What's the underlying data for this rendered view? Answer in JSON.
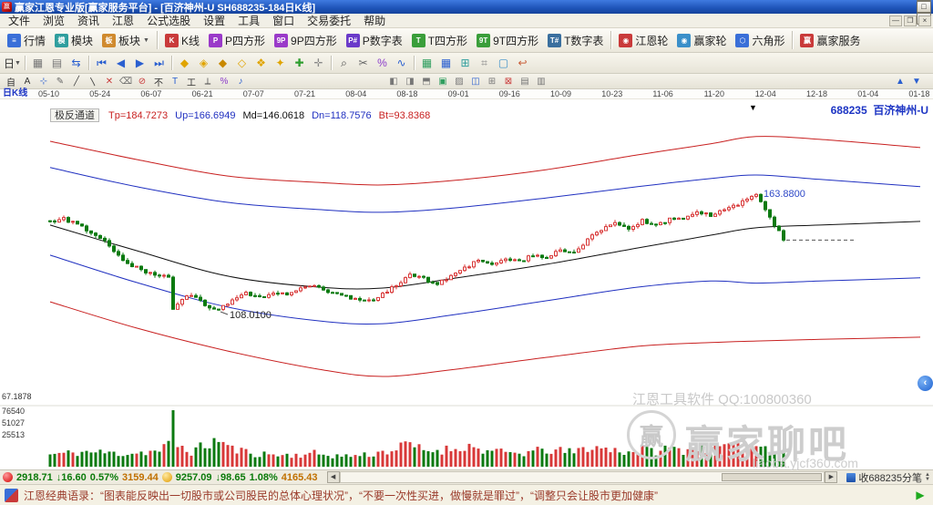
{
  "window": {
    "title": "赢家江恩专业版[赢家服务平台] - [百济神州-U SH688235-184日K线]",
    "controls": [
      {
        "glyph": "—",
        "name": "minimize-button"
      },
      {
        "glyph": "□",
        "name": "maximize-button"
      },
      {
        "glyph": "×",
        "name": "close-button"
      }
    ]
  },
  "menubar": {
    "items": [
      "文件",
      "浏览",
      "资讯",
      "江恩",
      "公式选股",
      "设置",
      "工具",
      "窗口",
      "交易委托",
      "帮助"
    ],
    "mdi_controls": [
      {
        "glyph": "—",
        "name": "mdi-minimize-button"
      },
      {
        "glyph": "❐",
        "name": "mdi-restore-button"
      },
      {
        "glyph": "×",
        "name": "mdi-close-button"
      }
    ]
  },
  "toolbar_main": {
    "items": [
      {
        "label": "行情",
        "ic": "≡",
        "bg": "#3a6fd8",
        "name": "quotes-button"
      },
      {
        "label": "模块",
        "ic": "模",
        "bg": "#2f9e9e",
        "name": "modules-button"
      },
      {
        "label": "板块",
        "ic": "板",
        "bg": "#d08a2e",
        "caret": true,
        "name": "sectors-button"
      },
      {
        "sep": true
      },
      {
        "label": "K线",
        "ic": "K",
        "bg": "#c93a3a",
        "name": "kline-button"
      },
      {
        "label": "P四方形",
        "ic": "P",
        "bg": "#9a3ac9",
        "name": "p-square-button"
      },
      {
        "label": "9P四方形",
        "ic": "9P",
        "bg": "#9a3ac9",
        "name": "nine-p-square-button"
      },
      {
        "label": "P数字表",
        "ic": "P#",
        "bg": "#6a3ac9",
        "name": "p-number-table-button"
      },
      {
        "label": "T四方形",
        "ic": "T",
        "bg": "#3a9e3a",
        "name": "t-square-button"
      },
      {
        "label": "9T四方形",
        "ic": "9T",
        "bg": "#3a9e3a",
        "name": "nine-t-square-button"
      },
      {
        "label": "T数字表",
        "ic": "T#",
        "bg": "#3a6f9e",
        "name": "t-number-table-button"
      },
      {
        "sep": true
      },
      {
        "label": "江恩轮",
        "ic": "◉",
        "bg": "#c93a3a",
        "name": "gann-wheel-button"
      },
      {
        "label": "赢家轮",
        "ic": "◉",
        "bg": "#3a8fc9",
        "name": "winner-wheel-button"
      },
      {
        "label": "六角形",
        "ic": "⬡",
        "bg": "#3a6fd8",
        "name": "hexagon-button"
      },
      {
        "sep": true
      },
      {
        "label": "赢家服务",
        "ic": "赢",
        "bg": "#c93a3a",
        "name": "winner-service-button"
      }
    ]
  },
  "toolbar_tools": {
    "items": [
      {
        "g": "日",
        "c": "#333333",
        "caret": true,
        "name": "period-selector-button"
      },
      {
        "sep": true
      },
      {
        "g": "▦",
        "c": "#777777",
        "name": "chart-grid-icon"
      },
      {
        "g": "▤",
        "c": "#777777",
        "name": "chart-layout-icon"
      },
      {
        "g": "⇆",
        "c": "#2a5fd0",
        "name": "swap-icon"
      },
      {
        "sep": true
      },
      {
        "g": "⏮",
        "c": "#2a5fd0",
        "name": "first-page-icon"
      },
      {
        "g": "◀",
        "c": "#2a5fd0",
        "name": "prev-page-icon"
      },
      {
        "g": "▶",
        "c": "#2a5fd0",
        "name": "next-page-icon"
      },
      {
        "g": "⏭",
        "c": "#2a5fd0",
        "name": "last-page-icon"
      },
      {
        "sep": true
      },
      {
        "g": "◆",
        "c": "#e0a400",
        "name": "diamond-icon"
      },
      {
        "g": "◈",
        "c": "#e0a400",
        "name": "diamond-target-icon"
      },
      {
        "g": "◆",
        "c": "#c88800",
        "name": "diamond-dark-icon"
      },
      {
        "g": "◇",
        "c": "#e0a400",
        "name": "diamond-outline-icon"
      },
      {
        "g": "❖",
        "c": "#e0a400",
        "name": "diamond-cluster-icon"
      },
      {
        "g": "✦",
        "c": "#e0a400",
        "name": "star-icon"
      },
      {
        "g": "✚",
        "c": "#2f9e2f",
        "name": "plus-cross-icon"
      },
      {
        "g": "✛",
        "c": "#888888",
        "name": "crosshair-icon"
      },
      {
        "sep": true
      },
      {
        "g": "⌕",
        "c": "#444444",
        "name": "zoom-icon"
      },
      {
        "g": "✂",
        "c": "#666666",
        "name": "scissors-icon"
      },
      {
        "g": "%",
        "c": "#8a3ac9",
        "name": "percent-icon"
      },
      {
        "g": "∿",
        "c": "#2a5fd0",
        "name": "wave-icon"
      },
      {
        "sep": true
      },
      {
        "g": "▦",
        "c": "#2f9e5f",
        "name": "green-grid-icon"
      },
      {
        "g": "▦",
        "c": "#2a5fd0",
        "name": "blue-grid-icon"
      },
      {
        "g": "⊞",
        "c": "#2f9e9e",
        "name": "calendar-icon"
      },
      {
        "g": "⌗",
        "c": "#888888",
        "name": "hash-grid-icon"
      },
      {
        "g": "▢",
        "c": "#3a8fc9",
        "name": "frame-icon"
      },
      {
        "g": "↩",
        "c": "#c95f3a",
        "name": "undo-icon"
      }
    ]
  },
  "toolbar_draw": {
    "left_items": [
      {
        "g": "自",
        "c": "#333333",
        "name": "auto-tool-icon"
      },
      {
        "g": "A",
        "c": "#333333",
        "name": "text-tool-icon"
      },
      {
        "g": "⊹",
        "c": "#2a5fd0",
        "name": "point-tool-icon"
      },
      {
        "g": "✎",
        "c": "#666666",
        "name": "pencil-tool-icon"
      },
      {
        "g": "╱",
        "c": "#444444",
        "name": "line-tool-icon"
      },
      {
        "g": "〵",
        "c": "#444444",
        "name": "polyline-tool-icon"
      },
      {
        "g": "✕",
        "c": "#c93a3a",
        "name": "delete-tool-icon"
      },
      {
        "g": "⌫",
        "c": "#666666",
        "name": "eraser-tool-icon"
      },
      {
        "g": "⊘",
        "c": "#c93a3a",
        "name": "forbid-tool-icon"
      },
      {
        "g": "不",
        "c": "#333333",
        "name": "no-tool-icon"
      },
      {
        "g": "T",
        "c": "#2a5fd0",
        "name": "t0-tool-icon"
      },
      {
        "g": "工",
        "c": "#333333",
        "name": "beam-tool-icon"
      },
      {
        "g": "⟂",
        "c": "#444444",
        "name": "perpendicular-tool-icon"
      },
      {
        "g": "%",
        "c": "#8a3ac9",
        "name": "retrace-percent-icon"
      },
      {
        "g": "♪",
        "c": "#2a5fd0",
        "name": "alert-tool-icon"
      }
    ],
    "mid_items": [
      {
        "g": "◧",
        "c": "#777777",
        "name": "layout-left-icon"
      },
      {
        "g": "◨",
        "c": "#777777",
        "name": "layout-right-icon"
      },
      {
        "g": "⬒",
        "c": "#777777",
        "name": "layout-top-icon"
      },
      {
        "g": "▣",
        "c": "#2f9e5f",
        "name": "layout-full-icon"
      },
      {
        "g": "▨",
        "c": "#777777",
        "name": "layout-hatch-icon"
      },
      {
        "g": "◫",
        "c": "#2a5fd0",
        "name": "layout-split-icon"
      },
      {
        "g": "⊞",
        "c": "#777777",
        "name": "layout-grid-icon"
      },
      {
        "g": "⊠",
        "c": "#c93a3a",
        "name": "layout-close-icon"
      },
      {
        "g": "▤",
        "c": "#777777",
        "name": "layout-rows-icon"
      },
      {
        "g": "▥",
        "c": "#777777",
        "name": "layout-cols-icon"
      }
    ],
    "right_items": [
      {
        "g": "▲",
        "c": "#2a5fd0",
        "name": "scroll-up-icon"
      },
      {
        "g": "▼",
        "c": "#2a5fd0",
        "name": "scroll-down-icon"
      }
    ]
  },
  "chart": {
    "pane_label": "日K线",
    "indicator_chip": "极反通道",
    "indicator_values": [
      {
        "text": "Tp=184.7273",
        "color": "#c82020"
      },
      {
        "text": "Up=166.6949",
        "color": "#2030c0"
      },
      {
        "text": "Md=146.0618",
        "color": "#101010"
      },
      {
        "text": "Dn=118.7576",
        "color": "#2030c0"
      },
      {
        "text": "Bt=93.8368",
        "color": "#c82020"
      }
    ],
    "symbol_code": "688235",
    "symbol_name": "百济神州-U",
    "min_price_label": "67.1878",
    "volume_scale": [
      "76540",
      "51027",
      "25513"
    ],
    "watermark_line": "江恩工具软件  QQ:100800360",
    "watermark_logo": "赢",
    "watermark_brand": "赢家聊吧",
    "watermark_url": "liaoba.yjcf360.com",
    "collapse_glyph": "‹"
  },
  "chart_data": {
    "type": "candlestick",
    "code": "688235",
    "name": "百济神州-U",
    "period": "日K线",
    "bars_in_title": 184,
    "date_ticks": [
      "05-10",
      "05-24",
      "06-07",
      "06-21",
      "07-07",
      "07-21",
      "08-04",
      "08-18",
      "09-01",
      "09-16",
      "10-09",
      "10-23",
      "11-06",
      "11-20",
      "12-04",
      "12-18",
      "01-04",
      "01-18"
    ],
    "indicator": {
      "name": "极反通道",
      "values": {
        "Tp": 184.7273,
        "Up": 166.6949,
        "Md": 146.0618,
        "Dn": 118.7576,
        "Bt": 93.8368
      }
    },
    "price_marks": [
      {
        "price": 163.88,
        "label": "163.8800",
        "color": "#2f49c8"
      },
      {
        "price": 108.01,
        "label": "108.0100",
        "color": "#222222"
      }
    ],
    "price_axis_bottom": 67.1878,
    "volume_axis": {
      "max": 76540,
      "ticks": [
        76540,
        51027,
        25513
      ]
    },
    "bar_count": 162,
    "last_close": 141.8,
    "close_anchors": [
      [
        0,
        150.5
      ],
      [
        3,
        152
      ],
      [
        7,
        148
      ],
      [
        11,
        143
      ],
      [
        14,
        137
      ],
      [
        17,
        131
      ],
      [
        20,
        127.5
      ],
      [
        23,
        126
      ],
      [
        26,
        124
      ],
      [
        27,
        109.5
      ],
      [
        29,
        114.5
      ],
      [
        31,
        116
      ],
      [
        34,
        111.5
      ],
      [
        37,
        108.6
      ],
      [
        40,
        114
      ],
      [
        43,
        117
      ],
      [
        46,
        114.5
      ],
      [
        49,
        117.5
      ],
      [
        52,
        115.5
      ],
      [
        55,
        119
      ],
      [
        58,
        120.5
      ],
      [
        61,
        117.5
      ],
      [
        64,
        115.5
      ],
      [
        67,
        113.5
      ],
      [
        70,
        113
      ],
      [
        73,
        116
      ],
      [
        76,
        121
      ],
      [
        79,
        125.5
      ],
      [
        82,
        123.5
      ],
      [
        85,
        121
      ],
      [
        88,
        124.5
      ],
      [
        91,
        128.5
      ],
      [
        94,
        132.5
      ],
      [
        97,
        130.5
      ],
      [
        100,
        133.5
      ],
      [
        103,
        131.5
      ],
      [
        106,
        135
      ],
      [
        109,
        133.5
      ],
      [
        112,
        137
      ],
      [
        115,
        135.5
      ],
      [
        118,
        142
      ],
      [
        121,
        146.5
      ],
      [
        124,
        149.5
      ],
      [
        127,
        147.5
      ],
      [
        130,
        151
      ],
      [
        133,
        148.5
      ],
      [
        136,
        151.5
      ],
      [
        139,
        152.5
      ],
      [
        142,
        154.5
      ],
      [
        145,
        153.5
      ],
      [
        148,
        156.5
      ],
      [
        151,
        159
      ],
      [
        153,
        161.5
      ],
      [
        155,
        163.5
      ],
      [
        156,
        160
      ],
      [
        157,
        156
      ],
      [
        158,
        152.5
      ],
      [
        159,
        149
      ],
      [
        160,
        145.5
      ],
      [
        161,
        141.8
      ]
    ],
    "channels": {
      "tp": [
        [
          0,
          188.4
        ],
        [
          19,
          179.8
        ],
        [
          39,
          172.0
        ],
        [
          59,
          169.0
        ],
        [
          73,
          167.8
        ],
        [
          89,
          170.0
        ],
        [
          109,
          175.0
        ],
        [
          129,
          182.0
        ],
        [
          145,
          187.2
        ],
        [
          155,
          190.6
        ],
        [
          169,
          189.3
        ],
        [
          191,
          185.4
        ]
      ],
      "up": [
        [
          0,
          176.0
        ],
        [
          19,
          167.0
        ],
        [
          39,
          159.6
        ],
        [
          59,
          156.2
        ],
        [
          73,
          154.9
        ],
        [
          89,
          157.0
        ],
        [
          109,
          161.7
        ],
        [
          129,
          167.0
        ],
        [
          145,
          170.8
        ],
        [
          155,
          172.5
        ],
        [
          169,
          170.4
        ],
        [
          191,
          167.0
        ]
      ],
      "md": [
        [
          0,
          148.9
        ],
        [
          19,
          136.8
        ],
        [
          39,
          124.8
        ],
        [
          59,
          119.6
        ],
        [
          73,
          119.2
        ],
        [
          89,
          123.9
        ],
        [
          109,
          130.4
        ],
        [
          129,
          138.1
        ],
        [
          145,
          144.1
        ],
        [
          155,
          147.6
        ],
        [
          169,
          148.9
        ],
        [
          191,
          150.6
        ]
      ],
      "dn": [
        [
          0,
          134.7
        ],
        [
          19,
          121.8
        ],
        [
          39,
          110.2
        ],
        [
          59,
          103.7
        ],
        [
          73,
          102.4
        ],
        [
          89,
          106.7
        ],
        [
          109,
          113.2
        ],
        [
          129,
          119.6
        ],
        [
          145,
          122.5
        ],
        [
          155,
          121.5
        ],
        [
          169,
          122.5
        ],
        [
          191,
          124.0
        ]
      ],
      "bt": [
        [
          0,
          112.7
        ],
        [
          19,
          100.3
        ],
        [
          39,
          89.5
        ],
        [
          59,
          80.9
        ],
        [
          73,
          77.5
        ],
        [
          89,
          80.9
        ],
        [
          109,
          86.5
        ],
        [
          129,
          91.7
        ],
        [
          145,
          93.5
        ],
        [
          155,
          94.2
        ],
        [
          169,
          95.0
        ],
        [
          191,
          96.0
        ]
      ]
    },
    "volume_profile": [
      [
        0,
        0.28
      ],
      [
        8,
        0.34
      ],
      [
        16,
        0.3
      ],
      [
        24,
        0.36
      ],
      [
        26,
        0.5
      ],
      [
        27,
        1.3
      ],
      [
        28,
        0.5
      ],
      [
        31,
        0.34
      ],
      [
        37,
        0.62
      ],
      [
        40,
        0.4
      ],
      [
        45,
        0.3
      ],
      [
        52,
        0.26
      ],
      [
        58,
        0.3
      ],
      [
        64,
        0.24
      ],
      [
        70,
        0.28
      ],
      [
        76,
        0.4
      ],
      [
        79,
        0.52
      ],
      [
        82,
        0.36
      ],
      [
        88,
        0.4
      ],
      [
        91,
        0.48
      ],
      [
        97,
        0.34
      ],
      [
        103,
        0.3
      ],
      [
        109,
        0.38
      ],
      [
        115,
        0.33
      ],
      [
        118,
        0.45
      ],
      [
        121,
        0.42
      ],
      [
        124,
        0.38
      ],
      [
        127,
        0.34
      ],
      [
        130,
        0.4
      ],
      [
        133,
        0.36
      ],
      [
        136,
        0.42
      ],
      [
        139,
        0.38
      ],
      [
        142,
        0.44
      ],
      [
        145,
        0.4
      ],
      [
        148,
        0.46
      ],
      [
        151,
        0.42
      ],
      [
        155,
        0.5
      ],
      [
        158,
        0.44
      ],
      [
        161,
        0.38
      ]
    ],
    "colors": {
      "up": "#d83838",
      "down": "#0b7a10",
      "channel_red": "#c82020",
      "channel_blue": "#2030c0",
      "channel_mid": "#101010"
    }
  },
  "statusbar": {
    "sh_index": {
      "value": "2918.71",
      "change": "↓16.60",
      "pct": "0.57%",
      "amount": "3159.44"
    },
    "sz_index": {
      "value": "9257.09",
      "change": "↓98.65",
      "pct": "1.08%",
      "amount": "4165.43"
    },
    "scroll": {
      "left": "◀",
      "right": "▶"
    },
    "right_label": "收688235分笔",
    "spinner": {
      "up": "▲",
      "down": "▼"
    }
  },
  "ticker": {
    "text": "江恩经典语录：“图表能反映出一切股市或公司股民的总体心理状况”，“不要一次性买进，做慢就是罪过”，“调整只会让股市更加健康”",
    "play_glyph": "▶"
  }
}
